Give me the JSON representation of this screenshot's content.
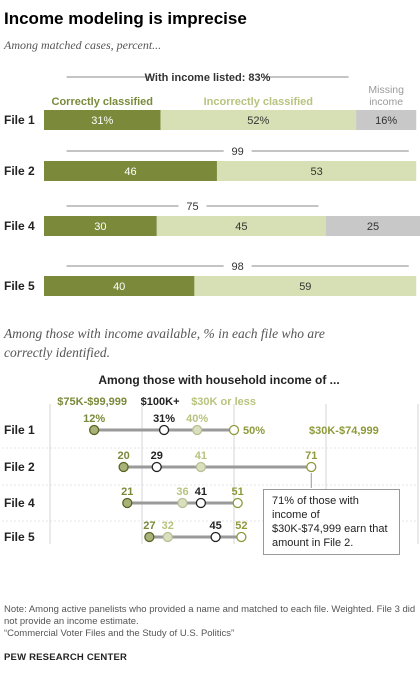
{
  "title": "Income modeling is imprecise",
  "subtitle": "Among matched cases, percent...",
  "section_note": "Among those with income available, % in each file who are correctly identified.",
  "callout": "71% of those with income of $30K-$74,999  earn that amount in File 2.",
  "footer": {
    "note": "Note: Among active panelists who provided a name and matched to each file. Weighted. File 3 did not provide an income estimate.",
    "source_title": "“Commercial Voter Files and the Study of U.S. Politics”",
    "org": "PEW RESEARCH CENTER"
  },
  "colors": {
    "correct": "#7a8a3a",
    "incorrect": "#d7e0b4",
    "missing": "#c8c8c8",
    "dot_low": "#a9b27a",
    "dot_high": "#9aa35a",
    "dot_mid": "#d9dfbf",
    "line": "#999999",
    "grid": "#cccccc"
  },
  "chart_data": [
    {
      "type": "bar",
      "orientation": "horizontal",
      "stacked": true,
      "categories": [
        "File 1",
        "File 2",
        "File 4",
        "File 5"
      ],
      "series": [
        {
          "name": "Correctly classified",
          "values": [
            31,
            46,
            30,
            40
          ]
        },
        {
          "name": "Incorrectly classified",
          "values": [
            52,
            53,
            45,
            59
          ]
        },
        {
          "name": "Missing income",
          "values": [
            16,
            0,
            25,
            0
          ]
        }
      ],
      "value_labels": [
        [
          "31%",
          "52%",
          "16%"
        ],
        [
          "46",
          "53",
          ""
        ],
        [
          "30",
          "45",
          "25"
        ],
        [
          "40",
          "59",
          ""
        ]
      ],
      "bracket_totals": [
        "With income listed: 83%",
        "99",
        "75",
        "98"
      ],
      "xlim": [
        0,
        100
      ]
    },
    {
      "type": "scatter",
      "subtype": "dot-plot",
      "title": "Among those with household income of ...",
      "categories": [
        "File 1",
        "File 2",
        "File 4",
        "File 5"
      ],
      "series": [
        {
          "name": "$75K-$99,999",
          "values": [
            12,
            20,
            21,
            27
          ]
        },
        {
          "name": "$100K+",
          "values": [
            31,
            29,
            41,
            45
          ]
        },
        {
          "name": "$30K or less",
          "values": [
            40,
            41,
            36,
            32
          ]
        },
        {
          "name": "$30K-$74,999",
          "values": [
            50,
            71,
            51,
            52
          ]
        }
      ],
      "point_labels": [
        [
          "12%",
          "31%",
          "40%",
          "50%"
        ],
        [
          "20",
          "29",
          "41",
          "71"
        ],
        [
          "21",
          "41",
          "36",
          "51"
        ],
        [
          "27",
          "45",
          "32",
          "52"
        ]
      ],
      "ticks": [
        "0%",
        "25",
        "50",
        "75",
        "10"
      ],
      "xlim": [
        0,
        100
      ]
    }
  ]
}
